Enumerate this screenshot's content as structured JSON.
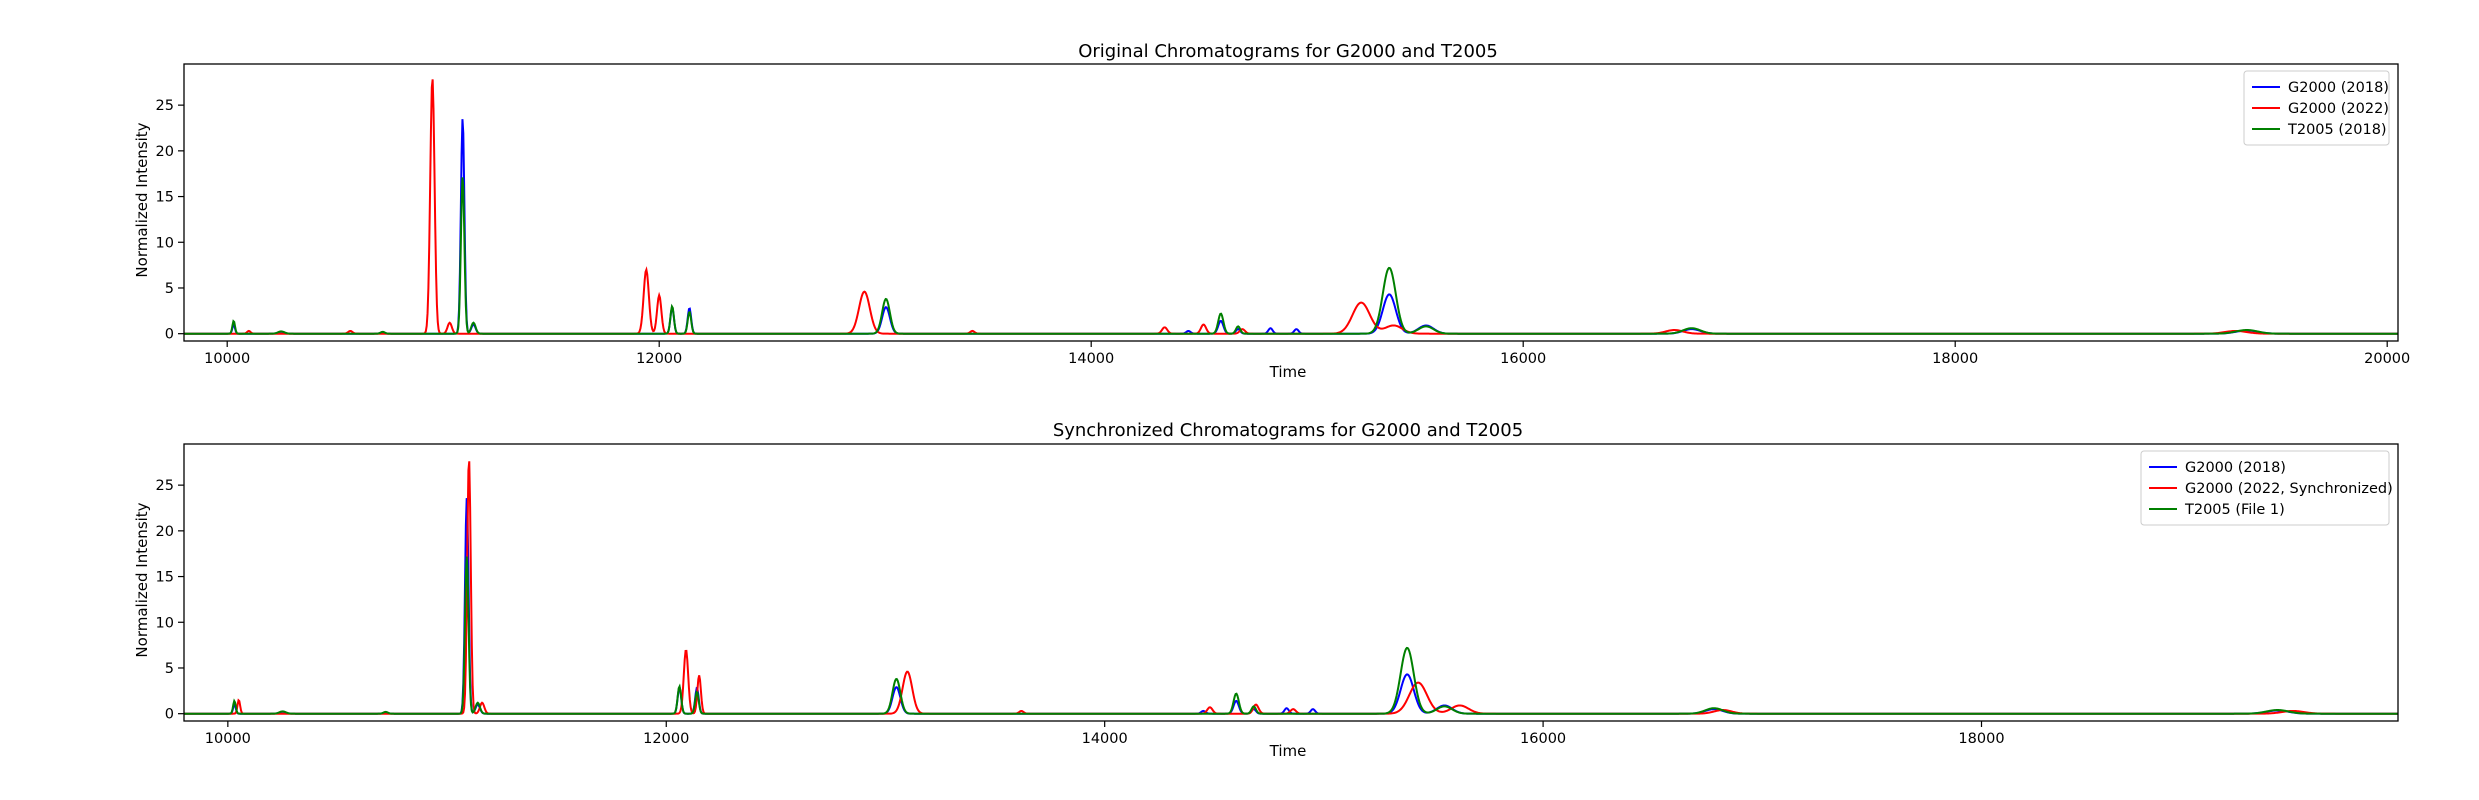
{
  "chart_data": [
    {
      "type": "line",
      "title": "Original Chromatograms for G2000 and T2005",
      "xlabel": "Time",
      "ylabel": "Normalized Intensity",
      "xlim": [
        9800,
        20050
      ],
      "ylim": [
        -0.8,
        29.5
      ],
      "x_ticks": [
        10000,
        12000,
        14000,
        16000,
        18000,
        20000
      ],
      "y_ticks": [
        0,
        5,
        10,
        15,
        20,
        25
      ],
      "grid": false,
      "legend_position": "top-right",
      "series": [
        {
          "name": "G2000 (2018)",
          "color": "#0000ff",
          "peaks": [
            {
              "x": 10030,
              "y": 1.0,
              "w": 6
            },
            {
              "x": 10250,
              "y": 0.2,
              "w": 15
            },
            {
              "x": 10720,
              "y": 0.15,
              "w": 10
            },
            {
              "x": 11090,
              "y": 23.6,
              "w": 8
            },
            {
              "x": 11140,
              "y": 1.0,
              "w": 10
            },
            {
              "x": 12060,
              "y": 2.9,
              "w": 8
            },
            {
              "x": 12140,
              "y": 2.8,
              "w": 8
            },
            {
              "x": 13050,
              "y": 2.9,
              "w": 18
            },
            {
              "x": 14450,
              "y": 0.3,
              "w": 10
            },
            {
              "x": 14600,
              "y": 1.4,
              "w": 12
            },
            {
              "x": 14680,
              "y": 0.5,
              "w": 10
            },
            {
              "x": 14830,
              "y": 0.6,
              "w": 10
            },
            {
              "x": 14950,
              "y": 0.5,
              "w": 10
            },
            {
              "x": 15380,
              "y": 4.3,
              "w": 30
            },
            {
              "x": 15550,
              "y": 0.9,
              "w": 35
            },
            {
              "x": 16780,
              "y": 0.5,
              "w": 40
            },
            {
              "x": 19350,
              "y": 0.35,
              "w": 50
            }
          ]
        },
        {
          "name": "G2000 (2022)",
          "color": "#ff0000",
          "peaks": [
            {
              "x": 10100,
              "y": 0.3,
              "w": 8
            },
            {
              "x": 10570,
              "y": 0.3,
              "w": 10
            },
            {
              "x": 10950,
              "y": 28.0,
              "w": 10
            },
            {
              "x": 11030,
              "y": 1.2,
              "w": 10
            },
            {
              "x": 11940,
              "y": 7.0,
              "w": 12
            },
            {
              "x": 12000,
              "y": 4.2,
              "w": 10
            },
            {
              "x": 12950,
              "y": 4.6,
              "w": 25
            },
            {
              "x": 13450,
              "y": 0.3,
              "w": 10
            },
            {
              "x": 14340,
              "y": 0.7,
              "w": 12
            },
            {
              "x": 14520,
              "y": 1.0,
              "w": 12
            },
            {
              "x": 14700,
              "y": 0.5,
              "w": 12
            },
            {
              "x": 15250,
              "y": 3.4,
              "w": 40
            },
            {
              "x": 15400,
              "y": 0.9,
              "w": 40
            },
            {
              "x": 16700,
              "y": 0.4,
              "w": 40
            },
            {
              "x": 19300,
              "y": 0.3,
              "w": 50
            }
          ]
        },
        {
          "name": "T2005 (2018)",
          "color": "#008000",
          "peaks": [
            {
              "x": 10030,
              "y": 1.4,
              "w": 6
            },
            {
              "x": 10250,
              "y": 0.25,
              "w": 15
            },
            {
              "x": 10720,
              "y": 0.2,
              "w": 10
            },
            {
              "x": 11090,
              "y": 17.2,
              "w": 8
            },
            {
              "x": 11140,
              "y": 1.2,
              "w": 10
            },
            {
              "x": 12060,
              "y": 3.0,
              "w": 8
            },
            {
              "x": 12140,
              "y": 2.4,
              "w": 8
            },
            {
              "x": 13050,
              "y": 3.8,
              "w": 18
            },
            {
              "x": 14600,
              "y": 2.2,
              "w": 12
            },
            {
              "x": 14680,
              "y": 0.8,
              "w": 10
            },
            {
              "x": 15380,
              "y": 7.2,
              "w": 30
            },
            {
              "x": 15550,
              "y": 0.8,
              "w": 35
            },
            {
              "x": 16780,
              "y": 0.6,
              "w": 40
            },
            {
              "x": 19350,
              "y": 0.4,
              "w": 50
            }
          ]
        }
      ]
    },
    {
      "type": "line",
      "title": "Synchronized Chromatograms for G2000 and T2005",
      "xlabel": "Time",
      "ylabel": "Normalized Intensity",
      "xlim": [
        9800,
        19900
      ],
      "ylim": [
        -0.8,
        29.5
      ],
      "x_ticks": [
        10000,
        12000,
        14000,
        16000,
        18000
      ],
      "y_ticks": [
        0,
        5,
        10,
        15,
        20,
        25
      ],
      "grid": false,
      "legend_position": "top-right",
      "series": [
        {
          "name": "G2000 (2018)",
          "color": "#0000ff",
          "peaks": [
            {
              "x": 10030,
              "y": 1.0,
              "w": 6
            },
            {
              "x": 10250,
              "y": 0.2,
              "w": 15
            },
            {
              "x": 10720,
              "y": 0.15,
              "w": 10
            },
            {
              "x": 11090,
              "y": 23.6,
              "w": 8
            },
            {
              "x": 11140,
              "y": 1.0,
              "w": 10
            },
            {
              "x": 12060,
              "y": 2.9,
              "w": 8
            },
            {
              "x": 12140,
              "y": 2.8,
              "w": 8
            },
            {
              "x": 13050,
              "y": 2.9,
              "w": 18
            },
            {
              "x": 14450,
              "y": 0.3,
              "w": 10
            },
            {
              "x": 14600,
              "y": 1.4,
              "w": 12
            },
            {
              "x": 14680,
              "y": 0.5,
              "w": 10
            },
            {
              "x": 14830,
              "y": 0.6,
              "w": 10
            },
            {
              "x": 14950,
              "y": 0.5,
              "w": 10
            },
            {
              "x": 15380,
              "y": 4.3,
              "w": 30
            },
            {
              "x": 15550,
              "y": 0.9,
              "w": 35
            },
            {
              "x": 16780,
              "y": 0.5,
              "w": 40
            },
            {
              "x": 19350,
              "y": 0.35,
              "w": 50
            }
          ]
        },
        {
          "name": "G2000 (2022, Synchronized)",
          "color": "#ff0000",
          "peaks": [
            {
              "x": 10050,
              "y": 1.5,
              "w": 6
            },
            {
              "x": 11100,
              "y": 28.0,
              "w": 8
            },
            {
              "x": 11160,
              "y": 1.2,
              "w": 10
            },
            {
              "x": 12090,
              "y": 7.0,
              "w": 10
            },
            {
              "x": 12150,
              "y": 4.2,
              "w": 8
            },
            {
              "x": 13100,
              "y": 4.6,
              "w": 22
            },
            {
              "x": 13620,
              "y": 0.3,
              "w": 10
            },
            {
              "x": 14480,
              "y": 0.7,
              "w": 12
            },
            {
              "x": 14690,
              "y": 1.0,
              "w": 12
            },
            {
              "x": 14860,
              "y": 0.5,
              "w": 12
            },
            {
              "x": 15430,
              "y": 3.4,
              "w": 40
            },
            {
              "x": 15620,
              "y": 0.9,
              "w": 40
            },
            {
              "x": 16820,
              "y": 0.4,
              "w": 40
            },
            {
              "x": 19420,
              "y": 0.3,
              "w": 50
            }
          ]
        },
        {
          "name": "T2005 (File 1)",
          "color": "#008000",
          "peaks": [
            {
              "x": 10030,
              "y": 1.4,
              "w": 6
            },
            {
              "x": 10250,
              "y": 0.25,
              "w": 15
            },
            {
              "x": 10720,
              "y": 0.2,
              "w": 10
            },
            {
              "x": 11090,
              "y": 17.2,
              "w": 8
            },
            {
              "x": 11140,
              "y": 1.2,
              "w": 10
            },
            {
              "x": 12060,
              "y": 3.0,
              "w": 8
            },
            {
              "x": 12140,
              "y": 2.4,
              "w": 8
            },
            {
              "x": 13050,
              "y": 3.8,
              "w": 18
            },
            {
              "x": 14600,
              "y": 2.2,
              "w": 12
            },
            {
              "x": 14680,
              "y": 0.8,
              "w": 10
            },
            {
              "x": 15380,
              "y": 7.2,
              "w": 30
            },
            {
              "x": 15550,
              "y": 0.8,
              "w": 35
            },
            {
              "x": 16780,
              "y": 0.6,
              "w": 40
            },
            {
              "x": 19350,
              "y": 0.4,
              "w": 50
            }
          ]
        }
      ]
    }
  ]
}
